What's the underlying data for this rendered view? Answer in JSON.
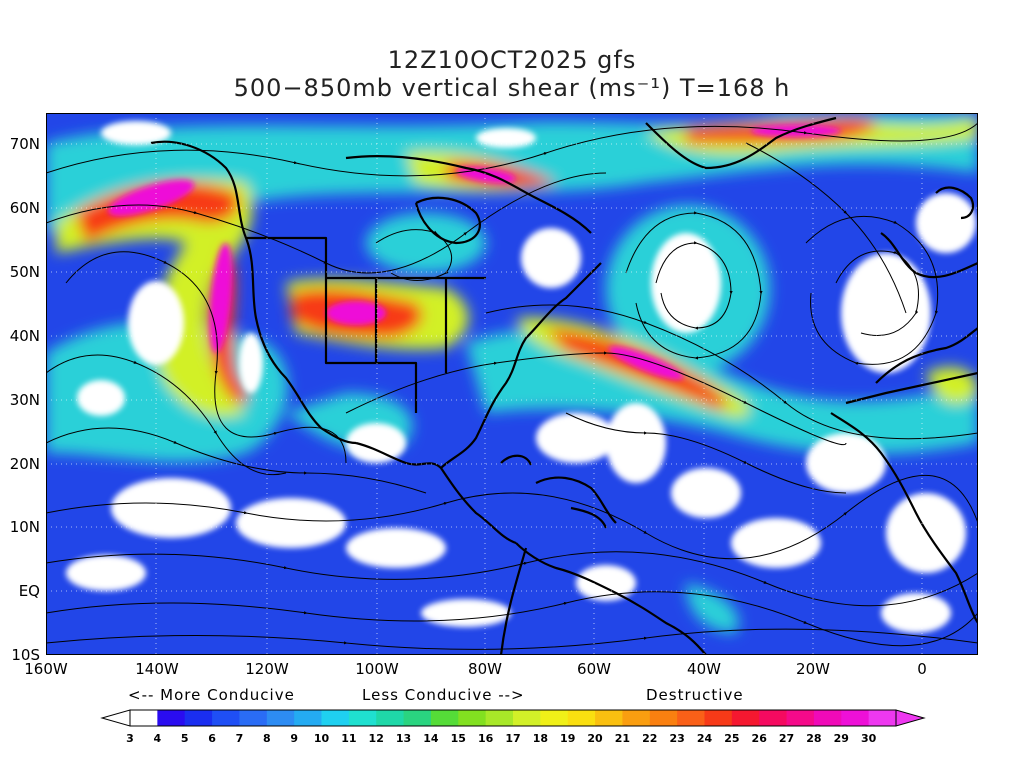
{
  "title_line1": "12Z10OCT2025 gfs",
  "title_line2": "500−850mb vertical shear (ms⁻¹) T=168 h",
  "lat_labels": [
    "70N",
    "60N",
    "50N",
    "40N",
    "30N",
    "20N",
    "10N",
    "EQ",
    "10S"
  ],
  "lon_labels": [
    "160W",
    "140W",
    "120W",
    "100W",
    "80W",
    "60W",
    "40W",
    "20W",
    "0"
  ],
  "legend": {
    "more_conducive": "<-- More Conducive",
    "less_conducive": "Less Conducive -->",
    "destructive": "Destructive",
    "ticks": [
      "3",
      "4",
      "5",
      "6",
      "7",
      "8",
      "9",
      "10",
      "11",
      "12",
      "13",
      "14",
      "15",
      "16",
      "17",
      "18",
      "19",
      "20",
      "21",
      "22",
      "23",
      "24",
      "25",
      "26",
      "27",
      "28",
      "29",
      "30"
    ],
    "colors": [
      "#ffffff",
      "#2a0cf0",
      "#1a2ef0",
      "#1f4ff5",
      "#2a6cf5",
      "#2d8cf3",
      "#24abf2",
      "#1fd0f0",
      "#1fe0d0",
      "#1fd8a8",
      "#2ad480",
      "#55dc38",
      "#82e020",
      "#a8e828",
      "#d2f028",
      "#f0f018",
      "#fadf10",
      "#fac010",
      "#fa9e10",
      "#fa8010",
      "#fa6018",
      "#f73a18",
      "#f51830",
      "#f50a60",
      "#f50a8a",
      "#f00ab8",
      "#ee10d8",
      "#ee38f0"
    ]
  },
  "map_colors": {
    "calm": "#ffffff",
    "low": "#2246e8",
    "mid": "#2ad0d8",
    "jet_mid": "#d2f028",
    "jet_high": "#f73a18",
    "jet_max": "#ee10d8",
    "coast": "#000000"
  }
}
